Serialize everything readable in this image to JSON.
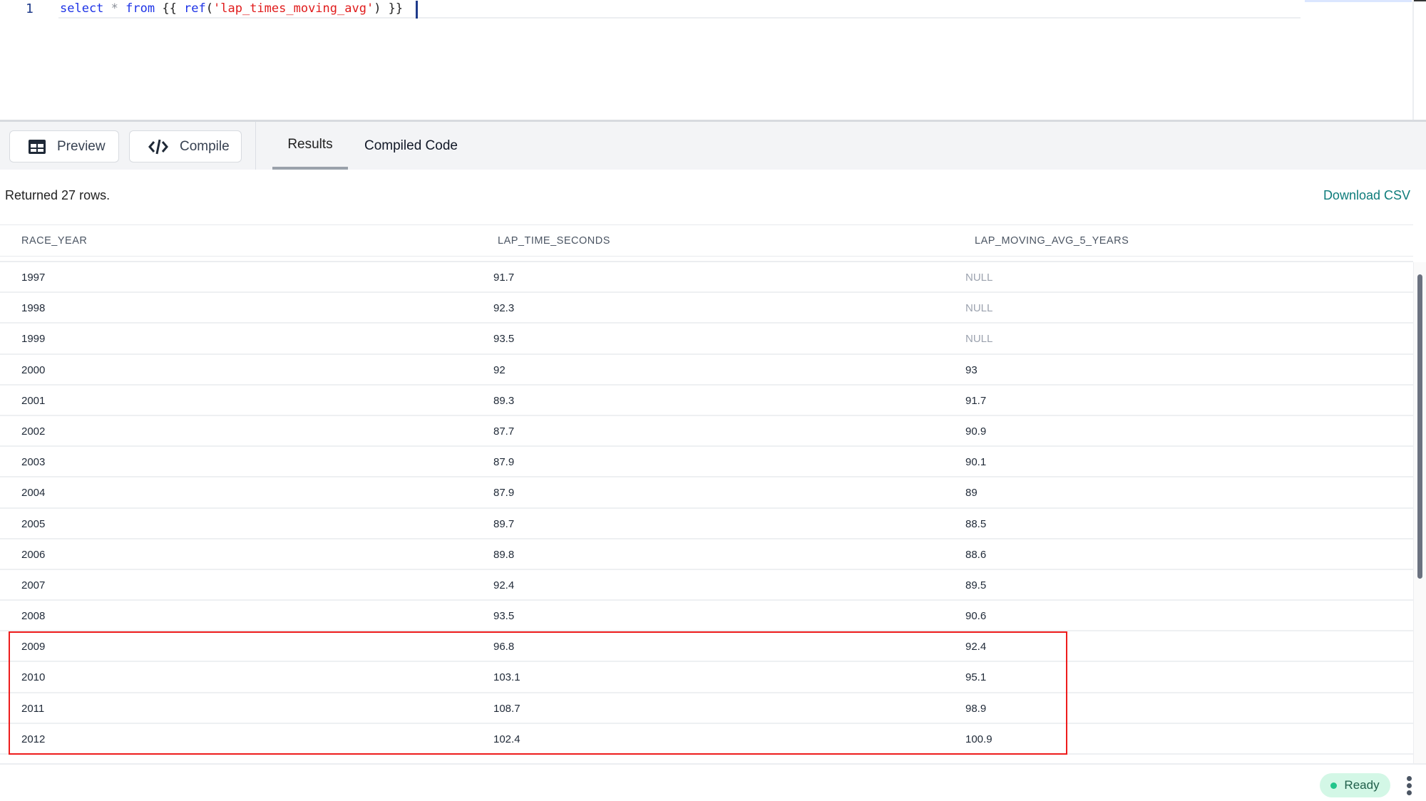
{
  "editor": {
    "line_number": "1",
    "code_tokens": {
      "select": "select",
      "star": " * ",
      "from": "from",
      "open": " {{ ",
      "ref": "ref",
      "paren_open": "(",
      "model": "'lap_times_moving_avg'",
      "paren_close": ")",
      "close": " }}"
    }
  },
  "toolbar": {
    "preview_label": "Preview",
    "compile_label": "Compile",
    "tabs": [
      {
        "label": "Results",
        "active": true
      },
      {
        "label": "Compiled Code",
        "active": false
      }
    ]
  },
  "results": {
    "summary": "Returned 27 rows.",
    "download_label": "Download CSV",
    "columns": [
      "RACE_YEAR",
      "LAP_TIME_SECONDS",
      "LAP_MOVING_AVG_5_YEARS"
    ],
    "rows": [
      [
        "1997",
        "91.7",
        "NULL"
      ],
      [
        "1998",
        "92.3",
        "NULL"
      ],
      [
        "1999",
        "93.5",
        "NULL"
      ],
      [
        "2000",
        "92",
        "93"
      ],
      [
        "2001",
        "89.3",
        "91.7"
      ],
      [
        "2002",
        "87.7",
        "90.9"
      ],
      [
        "2003",
        "87.9",
        "90.1"
      ],
      [
        "2004",
        "87.9",
        "89"
      ],
      [
        "2005",
        "89.7",
        "88.5"
      ],
      [
        "2006",
        "89.8",
        "88.6"
      ],
      [
        "2007",
        "92.4",
        "89.5"
      ],
      [
        "2008",
        "93.5",
        "90.6"
      ],
      [
        "2009",
        "96.8",
        "92.4"
      ],
      [
        "2010",
        "103.1",
        "95.1"
      ],
      [
        "2011",
        "108.7",
        "98.9"
      ],
      [
        "2012",
        "102.4",
        "100.9"
      ]
    ],
    "highlighted_years": [
      "2009",
      "2010",
      "2011",
      "2012"
    ],
    "highlight_color": "#ee1c1c"
  },
  "status": {
    "label": "Ready",
    "color": "#22c58b"
  },
  "colors": {
    "accent_link": "#0e7c7b",
    "keyword": "#1d33e6",
    "string": "#e01b1b"
  }
}
